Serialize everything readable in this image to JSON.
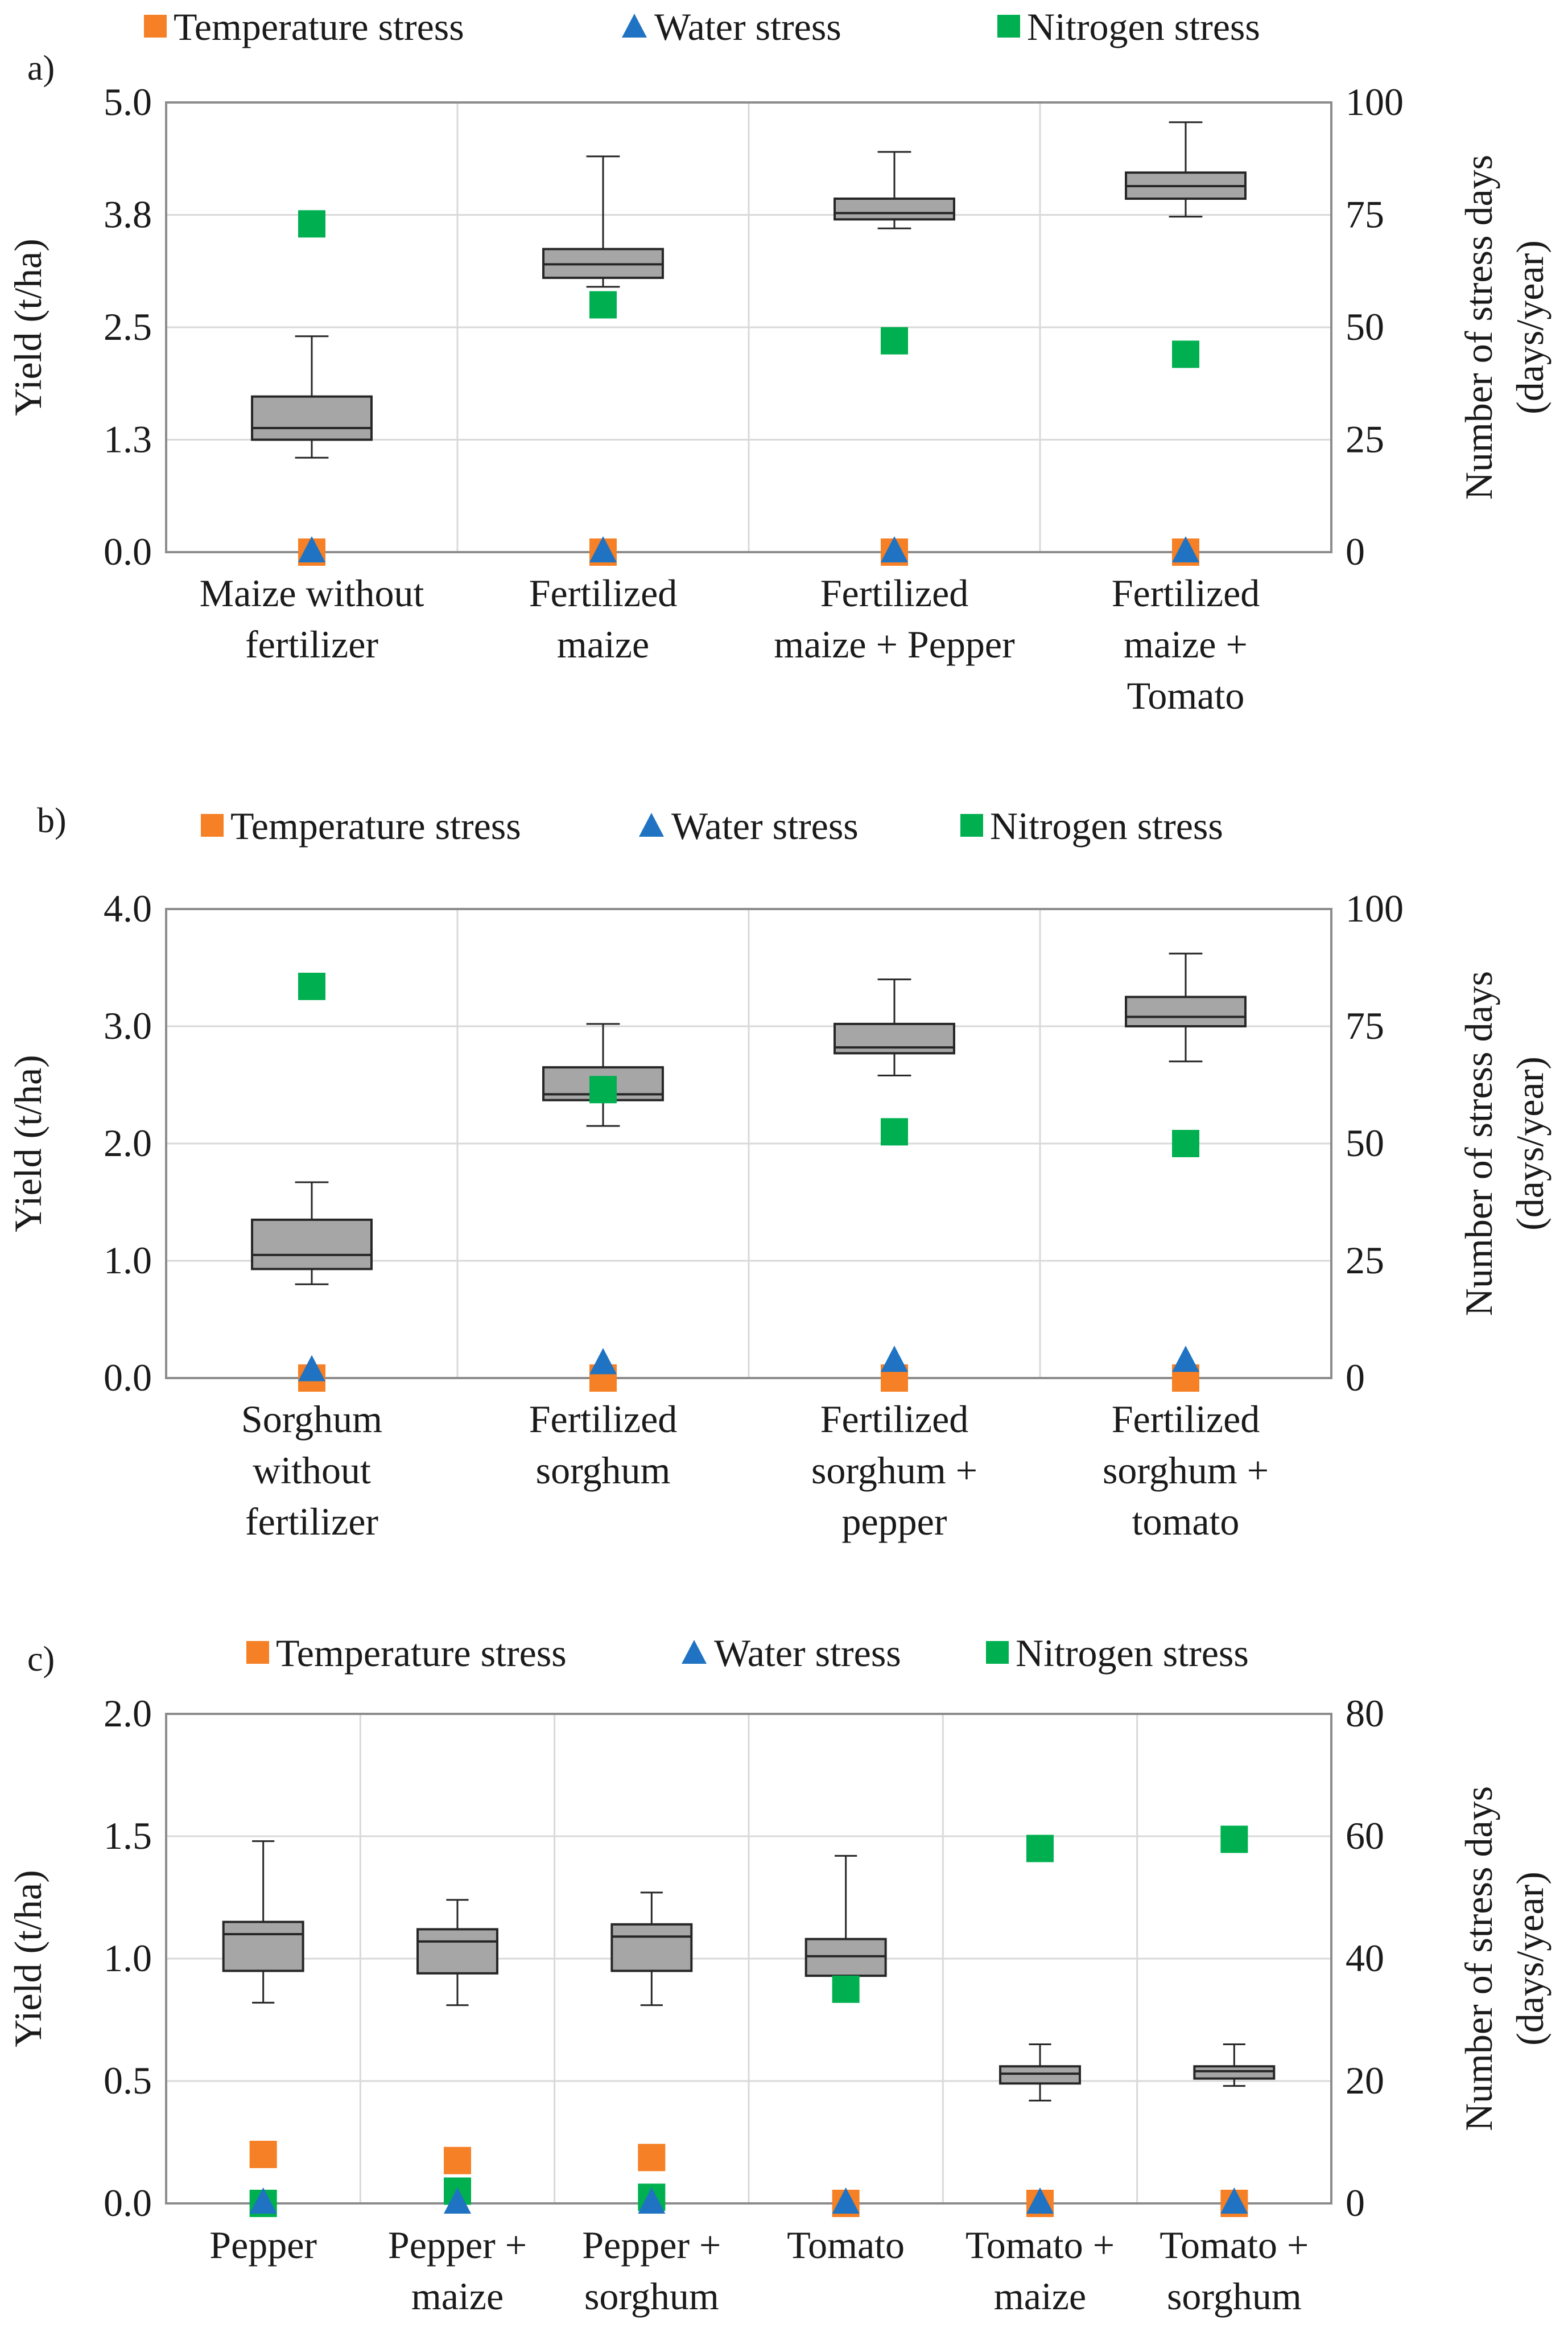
{
  "chart_data": [
    {
      "type": "box",
      "panel_label": "a)",
      "legend": {
        "temperature": "Temperature stress",
        "water": "Water stress",
        "nitrogen": "Nitrogen stress"
      },
      "ylabel": "Yield (t/ha)",
      "y2label_line1": "Number of stress days",
      "y2label_line2": "(days/year)",
      "ylim": [
        0,
        5
      ],
      "y_ticks": [
        "0.0",
        "1.3",
        "2.5",
        "3.8",
        "5.0"
      ],
      "y2lim": [
        0,
        100
      ],
      "y2_ticks": [
        "0",
        "25",
        "50",
        "75",
        "100"
      ],
      "categories": [
        [
          "Maize without",
          "fertilizer"
        ],
        [
          "Fertilized",
          "maize"
        ],
        [
          "Fertilized",
          "maize + Pepper"
        ],
        [
          "Fertilized",
          "maize +",
          "Tomato"
        ]
      ],
      "boxes": [
        {
          "min": 1.05,
          "q1": 1.25,
          "median": 1.38,
          "q3": 1.73,
          "max": 2.4
        },
        {
          "min": 2.95,
          "q1": 3.05,
          "median": 3.2,
          "q3": 3.37,
          "max": 4.4
        },
        {
          "min": 3.6,
          "q1": 3.7,
          "median": 3.77,
          "q3": 3.93,
          "max": 4.45
        },
        {
          "min": 3.73,
          "q1": 3.93,
          "median": 4.07,
          "q3": 4.22,
          "max": 4.78
        }
      ],
      "temperature_stress_days": [
        0,
        0,
        0,
        0
      ],
      "water_stress_days": [
        0,
        0,
        0,
        0
      ],
      "nitrogen_stress_days": [
        73,
        55,
        47,
        44
      ]
    },
    {
      "type": "box",
      "panel_label": "b)",
      "legend": {
        "temperature": "Temperature stress",
        "water": "Water stress",
        "nitrogen": "Nitrogen stress"
      },
      "ylabel": "Yield (t/ha)",
      "y2label_line1": "Number of stress days",
      "y2label_line2": "(days/year)",
      "ylim": [
        0,
        4
      ],
      "y_ticks": [
        "0.0",
        "1.0",
        "2.0",
        "3.0",
        "4.0"
      ],
      "y2lim": [
        0,
        100
      ],
      "y2_ticks": [
        "0",
        "25",
        "50",
        "75",
        "100"
      ],
      "categories": [
        [
          "Sorghum",
          "without",
          "fertilizer"
        ],
        [
          "Fertilized",
          "sorghum"
        ],
        [
          "Fertilized",
          "sorghum +",
          "pepper"
        ],
        [
          "Fertilized",
          "sorghum +",
          "tomato"
        ]
      ],
      "boxes": [
        {
          "min": 0.8,
          "q1": 0.93,
          "median": 1.05,
          "q3": 1.35,
          "max": 1.67
        },
        {
          "min": 2.15,
          "q1": 2.37,
          "median": 2.42,
          "q3": 2.65,
          "max": 3.02
        },
        {
          "min": 2.58,
          "q1": 2.77,
          "median": 2.82,
          "q3": 3.02,
          "max": 3.4
        },
        {
          "min": 2.7,
          "q1": 3.0,
          "median": 3.08,
          "q3": 3.25,
          "max": 3.62
        }
      ],
      "temperature_stress_days": [
        0,
        0,
        0,
        0
      ],
      "water_stress_days": [
        1.5,
        3,
        3.5,
        3.5
      ],
      "nitrogen_stress_days": [
        83.5,
        61.5,
        52.5,
        50
      ]
    },
    {
      "type": "box",
      "panel_label": "c)",
      "legend": {
        "temperature": "Temperature stress",
        "water": "Water stress",
        "nitrogen": "Nitrogen stress"
      },
      "ylabel": "Yield (t/ha)",
      "y2label_line1": "Number of stress days",
      "y2label_line2": "(days/year)",
      "ylim": [
        0,
        2
      ],
      "y_ticks": [
        "0.0",
        "0.5",
        "1.0",
        "1.5",
        "2.0"
      ],
      "y2lim": [
        0,
        80
      ],
      "y2_ticks": [
        "0",
        "20",
        "40",
        "60",
        "80"
      ],
      "categories": [
        [
          "Pepper"
        ],
        [
          "Pepper +",
          "maize"
        ],
        [
          "Pepper +",
          "sorghum"
        ],
        [
          "Tomato"
        ],
        [
          "Tomato +",
          "maize"
        ],
        [
          "Tomato +",
          "sorghum"
        ]
      ],
      "boxes": [
        {
          "min": 0.82,
          "q1": 0.95,
          "median": 1.1,
          "q3": 1.15,
          "max": 1.48
        },
        {
          "min": 0.81,
          "q1": 0.94,
          "median": 1.07,
          "q3": 1.12,
          "max": 1.24
        },
        {
          "min": 0.81,
          "q1": 0.95,
          "median": 1.09,
          "q3": 1.14,
          "max": 1.27
        },
        {
          "min": 0.85,
          "q1": 0.93,
          "median": 1.01,
          "q3": 1.08,
          "max": 1.42
        },
        {
          "min": 0.42,
          "q1": 0.49,
          "median": 0.53,
          "q3": 0.56,
          "max": 0.65
        },
        {
          "min": 0.48,
          "q1": 0.51,
          "median": 0.54,
          "q3": 0.56,
          "max": 0.65
        }
      ],
      "temperature_stress_days": [
        8,
        7,
        7.5,
        0,
        0,
        0
      ],
      "water_stress_days": [
        0,
        0,
        0,
        0,
        0,
        0
      ],
      "nitrogen_stress_days": [
        0,
        2,
        1,
        35,
        58,
        59.5
      ]
    }
  ],
  "colors": {
    "temperature": "#F58025",
    "water": "#1F73C2",
    "nitrogen": "#00B050",
    "box_fill": "#A6A6A6",
    "box_stroke": "#262626",
    "grid": "#D9D9D9",
    "frame": "#8C8C8C"
  }
}
